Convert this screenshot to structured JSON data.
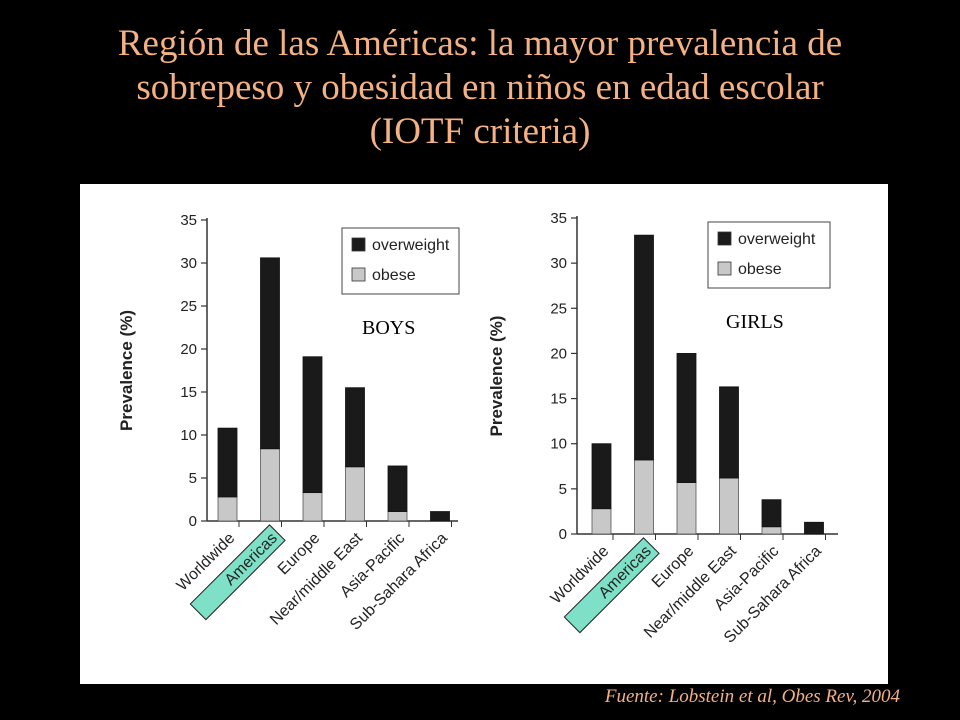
{
  "title_lines": [
    "Región de las Américas: la mayor prevalencia de",
    "sobrepeso y obesidad en niños en edad escolar",
    "(IOTF criteria)"
  ],
  "source": "Fuente: Lobstein et al, Obes Rev, 2004",
  "colors": {
    "title": "#f4b183",
    "overweight": "#1a1a1a",
    "obese": "#c8c8c8",
    "highlight": "#7fe0c8"
  },
  "chart_data": [
    {
      "type": "bar",
      "stacked": true,
      "panel_label": "BOYS",
      "ylabel": "Prevalence (%)",
      "ylim": [
        0,
        35
      ],
      "yticks": [
        0,
        5,
        10,
        15,
        20,
        25,
        30,
        35
      ],
      "categories": [
        "Worldwide",
        "Americas",
        "Europe",
        "Near/middle East",
        "Asia-Pacific",
        "Sub-Sahara Africa"
      ],
      "highlight_category": "Americas",
      "legend": [
        "overweight",
        "obese"
      ],
      "legend_position": "top-right",
      "series": [
        {
          "name": "obese",
          "values": [
            2.8,
            8.4,
            3.3,
            6.3,
            1.1,
            0
          ]
        },
        {
          "name": "overweight",
          "values": [
            8.0,
            22.2,
            15.8,
            9.2,
            5.3,
            1.1
          ]
        }
      ],
      "totals": [
        10.8,
        30.6,
        19.1,
        15.5,
        6.4,
        1.1
      ]
    },
    {
      "type": "bar",
      "stacked": true,
      "panel_label": "GIRLS",
      "ylabel": "Prevalence (%)",
      "ylim": [
        0,
        35
      ],
      "yticks": [
        0,
        5,
        10,
        15,
        20,
        25,
        30,
        35
      ],
      "categories": [
        "Worldwide",
        "Americas",
        "Europe",
        "Near/middle East",
        "Asia-Pacific",
        "Sub-Sahara Africa"
      ],
      "highlight_category": "Americas",
      "legend": [
        "overweight",
        "obese"
      ],
      "legend_position": "top-right",
      "series": [
        {
          "name": "obese",
          "values": [
            2.8,
            8.2,
            5.7,
            6.2,
            0.8,
            0
          ]
        },
        {
          "name": "overweight",
          "values": [
            7.2,
            24.9,
            14.3,
            10.1,
            3.0,
            1.3
          ]
        }
      ],
      "totals": [
        10.0,
        33.1,
        20.0,
        16.3,
        3.8,
        1.3
      ]
    }
  ]
}
